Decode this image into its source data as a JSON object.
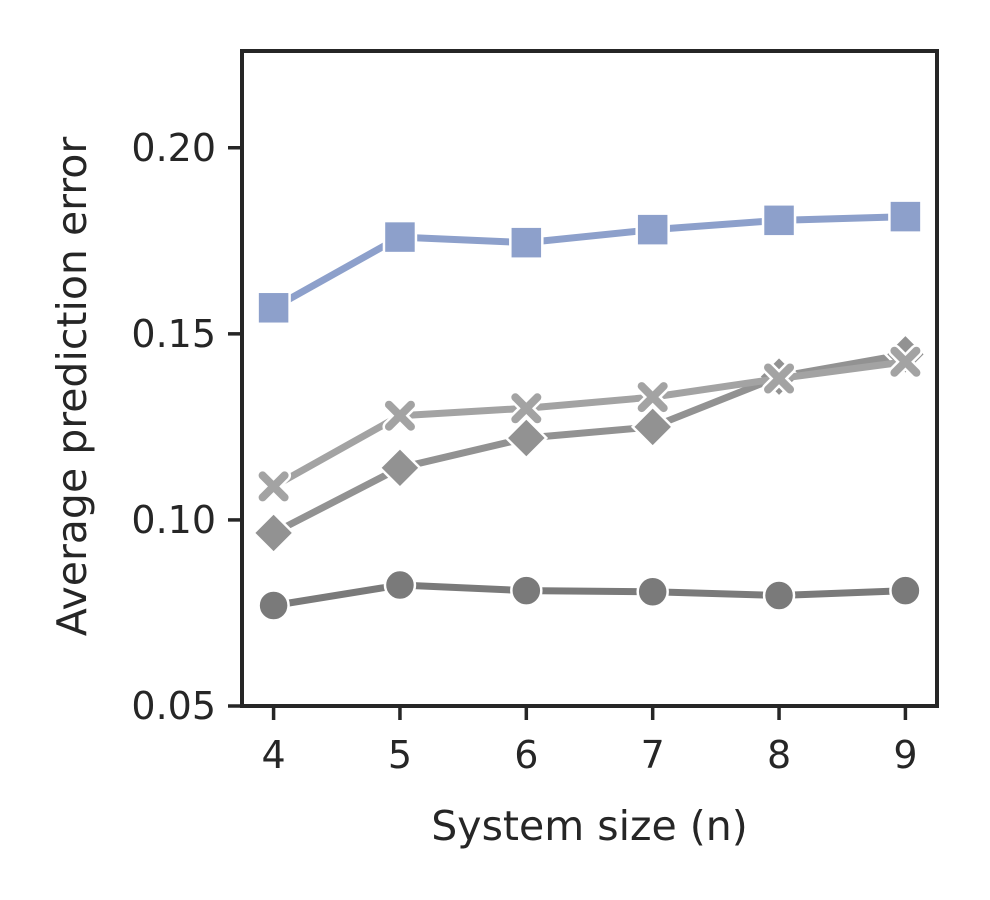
{
  "chart_data": {
    "type": "line",
    "title": "",
    "xlabel": "System size (n)",
    "ylabel": "Average prediction error",
    "x": [
      4,
      5,
      6,
      7,
      8,
      9
    ],
    "xlim": [
      3.75,
      9.25
    ],
    "ylim": [
      0.05,
      0.226
    ],
    "xticks": [
      "4",
      "5",
      "6",
      "7",
      "8",
      "9"
    ],
    "yticks": [
      {
        "value": 0.05,
        "label": "0.05"
      },
      {
        "value": 0.1,
        "label": "0.10"
      },
      {
        "value": 0.15,
        "label": "0.15"
      },
      {
        "value": 0.2,
        "label": "0.20"
      }
    ],
    "grid": false,
    "legend": "none",
    "series": [
      {
        "marker": "square",
        "color": "#8da0cb",
        "values": [
          0.157,
          0.176,
          0.1745,
          0.178,
          0.1805,
          0.1815
        ]
      },
      {
        "marker": "x",
        "color": "#a3a3a3",
        "values": [
          0.109,
          0.128,
          0.13,
          0.133,
          0.138,
          0.1425
        ]
      },
      {
        "marker": "diamond",
        "color": "#929292",
        "values": [
          0.0965,
          0.114,
          0.122,
          0.125,
          0.1385,
          0.1445
        ]
      },
      {
        "marker": "circle",
        "color": "#7a7a7a",
        "values": [
          0.077,
          0.0825,
          0.081,
          0.0807,
          0.0797,
          0.081
        ]
      }
    ]
  }
}
